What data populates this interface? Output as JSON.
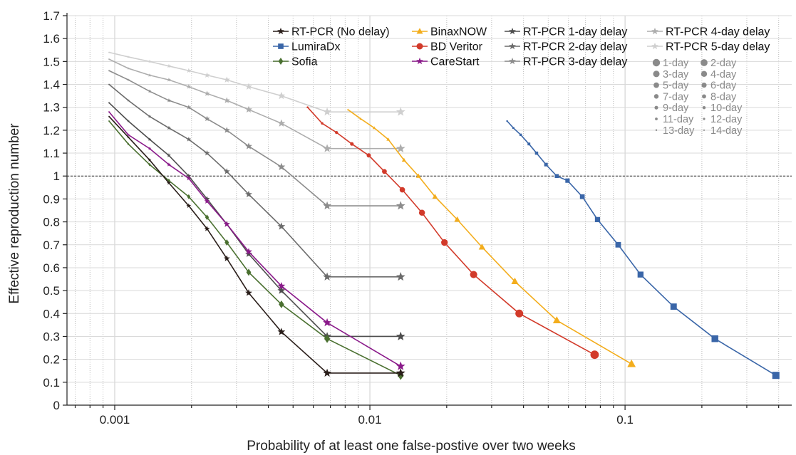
{
  "chart_data": {
    "type": "line",
    "title": "",
    "xlabel": "Probability of at least one false-postive over two weeks",
    "ylabel": "Effective reproduction number",
    "xscale": "log",
    "xlim": [
      0.00065,
      0.45
    ],
    "ylim": [
      0,
      1.7
    ],
    "x_ticks": [
      {
        "value": 0.001,
        "label": "0.001"
      },
      {
        "value": 0.01,
        "label": "0.01"
      },
      {
        "value": 0.1,
        "label": "0.1"
      }
    ],
    "y_ticks": [
      {
        "value": 0,
        "label": "0"
      },
      {
        "value": 0.1,
        "label": "0.1"
      },
      {
        "value": 0.2,
        "label": "0.2"
      },
      {
        "value": 0.3,
        "label": "0.3"
      },
      {
        "value": 0.4,
        "label": "0.4"
      },
      {
        "value": 0.5,
        "label": "0.5"
      },
      {
        "value": 0.6,
        "label": "0.6"
      },
      {
        "value": 0.7,
        "label": "0.7"
      },
      {
        "value": 0.8,
        "label": "0.8"
      },
      {
        "value": 0.9,
        "label": "0.9"
      },
      {
        "value": 1.0,
        "label": "1"
      },
      {
        "value": 1.1,
        "label": "1.1"
      },
      {
        "value": 1.2,
        "label": "1.2"
      },
      {
        "value": 1.3,
        "label": "1.3"
      },
      {
        "value": 1.4,
        "label": "1.4"
      },
      {
        "value": 1.5,
        "label": "1.5"
      },
      {
        "value": 1.6,
        "label": "1.6"
      },
      {
        "value": 1.7,
        "label": "1.7"
      }
    ],
    "grid": true,
    "reference_line": {
      "y": 1.0,
      "style": "dashed",
      "color": "#333333"
    },
    "legend_position": "top-right",
    "marker_size_legend": {
      "labels": [
        "1-day",
        "2-day",
        "3-day",
        "4-day",
        "5-day",
        "6-day",
        "7-day",
        "8-day",
        "9-day",
        "10-day",
        "11-day",
        "12-day",
        "13-day",
        "14-day"
      ],
      "color": "#8a8a8a"
    },
    "series": [
      {
        "name": "RT-PCR (No delay)",
        "color": "#2a1e1a",
        "marker": "star",
        "x": [
          0.00095,
          0.00113,
          0.00137,
          0.00163,
          0.00195,
          0.0023,
          0.00275,
          0.00335,
          0.0045,
          0.0068,
          0.0132
        ],
        "y": [
          1.26,
          1.17,
          1.07,
          0.97,
          0.87,
          0.77,
          0.64,
          0.49,
          0.32,
          0.14,
          0.14
        ]
      },
      {
        "name": "LumiraDx",
        "color": "#3a66a8",
        "marker": "square",
        "x": [
          0.0345,
          0.0365,
          0.039,
          0.042,
          0.045,
          0.049,
          0.054,
          0.0595,
          0.068,
          0.078,
          0.094,
          0.115,
          0.155,
          0.225,
          0.39
        ],
        "y": [
          1.24,
          1.21,
          1.18,
          1.14,
          1.1,
          1.05,
          1.0,
          0.98,
          0.91,
          0.81,
          0.7,
          0.57,
          0.43,
          0.29,
          0.13
        ]
      },
      {
        "name": "Sofia",
        "color": "#4a7030",
        "marker": "diamond",
        "x": [
          0.00095,
          0.00113,
          0.00137,
          0.00163,
          0.00195,
          0.0023,
          0.00275,
          0.00335,
          0.0045,
          0.0068,
          0.0132
        ],
        "y": [
          1.24,
          1.14,
          1.05,
          0.98,
          0.91,
          0.82,
          0.71,
          0.58,
          0.44,
          0.29,
          0.13
        ]
      },
      {
        "name": "BinaxNOW",
        "color": "#f3ad1c",
        "marker": "triangle",
        "x": [
          0.0082,
          0.0092,
          0.0104,
          0.0118,
          0.0136,
          0.0155,
          0.018,
          0.022,
          0.0275,
          0.037,
          0.054,
          0.106
        ],
        "y": [
          1.29,
          1.25,
          1.21,
          1.16,
          1.07,
          1.0,
          0.91,
          0.81,
          0.69,
          0.54,
          0.37,
          0.18
        ]
      },
      {
        "name": "BD Veritor",
        "color": "#d23a2a",
        "marker": "circle",
        "x": [
          0.0057,
          0.0065,
          0.0074,
          0.0085,
          0.0099,
          0.0114,
          0.0134,
          0.016,
          0.0196,
          0.0255,
          0.0385,
          0.076
        ],
        "y": [
          1.3,
          1.23,
          1.19,
          1.14,
          1.09,
          1.02,
          0.94,
          0.84,
          0.71,
          0.57,
          0.4,
          0.22
        ]
      },
      {
        "name": "CareStart",
        "color": "#8a1a8a",
        "marker": "star",
        "x": [
          0.00095,
          0.00113,
          0.00137,
          0.00163,
          0.00195,
          0.0023,
          0.00275,
          0.00335,
          0.0045,
          0.0068,
          0.0132
        ],
        "y": [
          1.28,
          1.18,
          1.12,
          1.05,
          0.99,
          0.89,
          0.79,
          0.67,
          0.52,
          0.36,
          0.17
        ]
      },
      {
        "name": "RT-PCR 1-day delay",
        "color": "#4d4d4d",
        "marker": "star",
        "x": [
          0.00095,
          0.00113,
          0.00137,
          0.00163,
          0.00195,
          0.0023,
          0.00275,
          0.00335,
          0.0045,
          0.0068,
          0.0132
        ],
        "y": [
          1.32,
          1.24,
          1.16,
          1.09,
          1.0,
          0.9,
          0.79,
          0.66,
          0.5,
          0.3,
          0.3
        ]
      },
      {
        "name": "RT-PCR 2-day delay",
        "color": "#6b6b6b",
        "marker": "star",
        "x": [
          0.00095,
          0.00113,
          0.00137,
          0.00163,
          0.00195,
          0.0023,
          0.00275,
          0.00335,
          0.0045,
          0.0068,
          0.0132
        ],
        "y": [
          1.4,
          1.33,
          1.26,
          1.21,
          1.16,
          1.1,
          1.02,
          0.92,
          0.78,
          0.56,
          0.56
        ]
      },
      {
        "name": "RT-PCR 3-day delay",
        "color": "#8c8c8c",
        "marker": "star",
        "x": [
          0.00095,
          0.00113,
          0.00137,
          0.00163,
          0.00195,
          0.0023,
          0.00275,
          0.00335,
          0.0045,
          0.0068,
          0.0132
        ],
        "y": [
          1.46,
          1.42,
          1.37,
          1.33,
          1.3,
          1.25,
          1.2,
          1.13,
          1.04,
          0.87,
          0.87
        ]
      },
      {
        "name": "RT-PCR 4-day delay",
        "color": "#adadad",
        "marker": "star",
        "x": [
          0.00095,
          0.00113,
          0.00137,
          0.00163,
          0.00195,
          0.0023,
          0.00275,
          0.00335,
          0.0045,
          0.0068,
          0.0132
        ],
        "y": [
          1.51,
          1.47,
          1.44,
          1.42,
          1.39,
          1.36,
          1.33,
          1.29,
          1.23,
          1.12,
          1.12
        ]
      },
      {
        "name": "RT-PCR 5-day delay",
        "color": "#cfcfcf",
        "marker": "star",
        "x": [
          0.00095,
          0.00113,
          0.00137,
          0.00163,
          0.00195,
          0.0023,
          0.00275,
          0.00335,
          0.0045,
          0.0068,
          0.0132
        ],
        "y": [
          1.54,
          1.52,
          1.5,
          1.48,
          1.46,
          1.44,
          1.42,
          1.39,
          1.35,
          1.28,
          1.28
        ]
      }
    ]
  }
}
